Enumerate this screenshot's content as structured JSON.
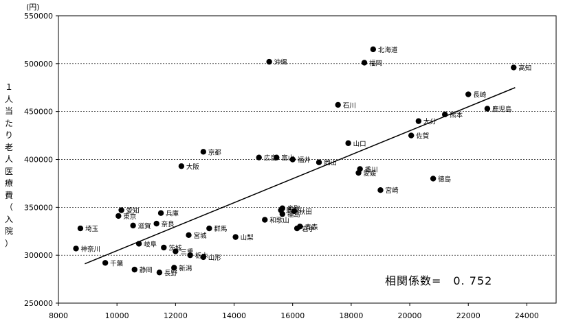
{
  "chart_data": {
    "type": "scatter",
    "title": "",
    "xlabel": "",
    "ylabel": "１人当たり老人医療費（入院）",
    "yunit": "(円)",
    "xlim": [
      8000,
      25000
    ],
    "ylim": [
      250000,
      550000
    ],
    "xticks": [
      8000,
      10000,
      12000,
      14000,
      16000,
      18000,
      20000,
      22000,
      24000
    ],
    "yticks": [
      250000,
      300000,
      350000,
      400000,
      450000,
      500000,
      550000
    ],
    "grid": "horizontal-dashed",
    "annotation": "相関係数=　0. 752",
    "trendline": {
      "x": [
        8900,
        23600
      ],
      "y": [
        291000,
        475000
      ]
    },
    "points": [
      {
        "label": "北海道",
        "x": 18750,
        "y": 515000
      },
      {
        "label": "沖縄",
        "x": 15200,
        "y": 502000
      },
      {
        "label": "福岡",
        "x": 18450,
        "y": 501000
      },
      {
        "label": "高知",
        "x": 23550,
        "y": 496000
      },
      {
        "label": "長崎",
        "x": 22000,
        "y": 468000
      },
      {
        "label": "石川",
        "x": 17550,
        "y": 457000
      },
      {
        "label": "鹿児島",
        "x": 22650,
        "y": 453000
      },
      {
        "label": "熊本",
        "x": 21200,
        "y": 447000
      },
      {
        "label": "大分",
        "x": 20300,
        "y": 440000
      },
      {
        "label": "佐賀",
        "x": 20050,
        "y": 425000
      },
      {
        "label": "山口",
        "x": 17900,
        "y": 417000
      },
      {
        "label": "京都",
        "x": 12950,
        "y": 408000
      },
      {
        "label": "富山",
        "x": 15450,
        "y": 402000
      },
      {
        "label": "広島",
        "x": 14850,
        "y": 402000
      },
      {
        "label": "福井",
        "x": 16000,
        "y": 400000
      },
      {
        "label": "岡山",
        "x": 16900,
        "y": 397000
      },
      {
        "label": "大阪",
        "x": 12200,
        "y": 393000
      },
      {
        "label": "香川",
        "x": 18300,
        "y": 390000
      },
      {
        "label": "愛媛",
        "x": 18250,
        "y": 386000
      },
      {
        "label": "徳島",
        "x": 20800,
        "y": 380000
      },
      {
        "label": "宮崎",
        "x": 19000,
        "y": 368000
      },
      {
        "label": "鳥取",
        "x": 15650,
        "y": 349000
      },
      {
        "label": "島根",
        "x": 15600,
        "y": 347000
      },
      {
        "label": "秋田",
        "x": 16050,
        "y": 346000
      },
      {
        "label": "愛知",
        "x": 10150,
        "y": 347000
      },
      {
        "label": "兵庫",
        "x": 11500,
        "y": 344000
      },
      {
        "label": "東京",
        "x": 10050,
        "y": 341000
      },
      {
        "label": "福島",
        "x": 15650,
        "y": 343000
      },
      {
        "label": "和歌山",
        "x": 15050,
        "y": 337000
      },
      {
        "label": "奈良",
        "x": 11350,
        "y": 333000
      },
      {
        "label": "滋賀",
        "x": 10550,
        "y": 331000
      },
      {
        "label": "青森",
        "x": 16250,
        "y": 330000
      },
      {
        "label": "埼玉",
        "x": 8750,
        "y": 328000
      },
      {
        "label": "岩手",
        "x": 16150,
        "y": 328000
      },
      {
        "label": "群馬",
        "x": 13150,
        "y": 328000
      },
      {
        "label": "宮城",
        "x": 12450,
        "y": 321000
      },
      {
        "label": "山梨",
        "x": 14050,
        "y": 319000
      },
      {
        "label": "岐阜",
        "x": 10750,
        "y": 312000
      },
      {
        "label": "茨城",
        "x": 11600,
        "y": 308000
      },
      {
        "label": "神奈川",
        "x": 8600,
        "y": 307000
      },
      {
        "label": "三重",
        "x": 12000,
        "y": 304000
      },
      {
        "label": "栃木",
        "x": 12500,
        "y": 300000
      },
      {
        "label": "山形",
        "x": 12950,
        "y": 298000
      },
      {
        "label": "千葉",
        "x": 9600,
        "y": 292000
      },
      {
        "label": "新潟",
        "x": 11950,
        "y": 287000
      },
      {
        "label": "静岡",
        "x": 10600,
        "y": 285000
      },
      {
        "label": "長野",
        "x": 11450,
        "y": 282000
      }
    ]
  }
}
